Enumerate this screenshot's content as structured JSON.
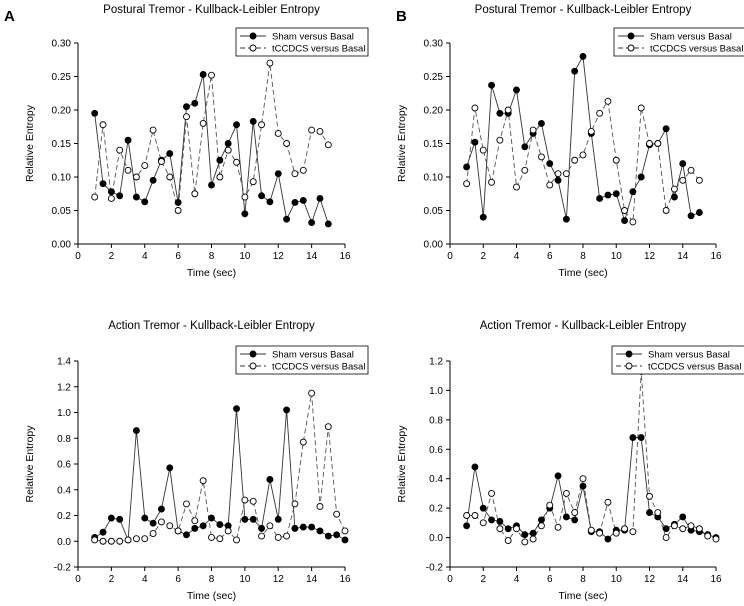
{
  "panels": [
    {
      "label": "A"
    },
    {
      "label": "B"
    }
  ],
  "chart_data": [
    {
      "type": "line",
      "panel": "A",
      "title": "Postural Tremor - Kullback-Leibler Entropy",
      "xlabel": "Time (sec)",
      "ylabel": "Relative Entropy",
      "xlim": [
        0,
        16
      ],
      "ylim": [
        0,
        0.3
      ],
      "xticks": [
        0,
        2,
        4,
        6,
        8,
        10,
        12,
        14,
        16
      ],
      "yticks": [
        0.0,
        0.05,
        0.1,
        0.15,
        0.2,
        0.25,
        0.3
      ],
      "ytick_labels": [
        "0.00",
        "0.05",
        "0.10",
        "0.15",
        "0.20",
        "0.25",
        "0.30"
      ],
      "legend": "top-right",
      "series": [
        {
          "name": "Sham versus Basal",
          "style": "solid-filled",
          "x": [
            1.0,
            1.5,
            2.0,
            2.5,
            3.0,
            3.5,
            4.0,
            4.5,
            5.0,
            5.5,
            6.0,
            6.5,
            7.0,
            7.5,
            8.0,
            8.5,
            9.0,
            9.5,
            10.0,
            10.5,
            11.0,
            11.5,
            12.0,
            12.5,
            13.0,
            13.5,
            14.0,
            14.5,
            15.0
          ],
          "y": [
            0.195,
            0.09,
            0.078,
            0.072,
            0.155,
            0.07,
            0.063,
            0.095,
            0.125,
            0.135,
            0.062,
            0.205,
            0.21,
            0.253,
            0.088,
            0.125,
            0.15,
            0.178,
            0.045,
            0.183,
            0.072,
            0.063,
            0.105,
            0.037,
            0.062,
            0.065,
            0.032,
            0.068,
            0.03
          ]
        },
        {
          "name": "tCCDCS versus Basal",
          "style": "dashed-open",
          "x": [
            1.0,
            1.5,
            2.0,
            2.5,
            3.0,
            3.5,
            4.0,
            4.5,
            5.0,
            5.5,
            6.0,
            6.5,
            7.0,
            7.5,
            8.0,
            8.5,
            9.0,
            9.5,
            10.0,
            10.5,
            11.0,
            11.5,
            12.0,
            12.5,
            13.0,
            13.5,
            14.0,
            14.5,
            15.0
          ],
          "y": [
            0.07,
            0.178,
            0.068,
            0.14,
            0.11,
            0.1,
            0.117,
            0.17,
            0.123,
            0.1,
            0.05,
            0.19,
            0.075,
            0.18,
            0.252,
            0.1,
            0.14,
            0.122,
            0.07,
            0.093,
            0.178,
            0.27,
            0.165,
            0.15,
            0.105,
            0.11,
            0.17,
            0.168,
            0.148
          ]
        }
      ]
    },
    {
      "type": "line",
      "panel": "B",
      "title": "Postural Tremor - Kullback-Leibler Entropy",
      "xlabel": "Time (sec)",
      "ylabel": "Relative Entropy",
      "xlim": [
        0,
        16
      ],
      "ylim": [
        0,
        0.3
      ],
      "xticks": [
        0,
        2,
        4,
        6,
        8,
        10,
        12,
        14,
        16
      ],
      "yticks": [
        0.0,
        0.05,
        0.1,
        0.15,
        0.2,
        0.25,
        0.3
      ],
      "ytick_labels": [
        "0.00",
        "0.05",
        "0.10",
        "0.15",
        "0.20",
        "0.25",
        "0.30"
      ],
      "legend": "top-right",
      "series": [
        {
          "name": "Sham versus Basal",
          "style": "solid-filled",
          "x": [
            1.0,
            1.5,
            2.0,
            2.5,
            3.0,
            3.5,
            4.0,
            4.5,
            5.0,
            5.5,
            6.0,
            6.5,
            7.0,
            7.5,
            8.0,
            8.5,
            9.0,
            9.5,
            10.0,
            10.5,
            11.0,
            11.5,
            12.0,
            12.5,
            13.0,
            13.5,
            14.0,
            14.5,
            15.0
          ],
          "y": [
            0.115,
            0.152,
            0.04,
            0.237,
            0.195,
            0.195,
            0.23,
            0.145,
            0.165,
            0.18,
            0.12,
            0.095,
            0.037,
            0.258,
            0.28,
            0.165,
            0.068,
            0.073,
            0.075,
            0.035,
            0.078,
            0.1,
            0.148,
            0.15,
            0.172,
            0.07,
            0.12,
            0.042,
            0.047
          ]
        },
        {
          "name": "tCCDCS versus Basal",
          "style": "dashed-open",
          "x": [
            1.0,
            1.5,
            2.0,
            2.5,
            3.0,
            3.5,
            4.0,
            4.5,
            5.0,
            5.5,
            6.0,
            6.5,
            7.0,
            7.5,
            8.0,
            8.5,
            9.0,
            9.5,
            10.0,
            10.5,
            11.0,
            11.5,
            12.0,
            12.5,
            13.0,
            13.5,
            14.0,
            14.5,
            15.0
          ],
          "y": [
            0.09,
            0.203,
            0.14,
            0.092,
            0.155,
            0.2,
            0.085,
            0.11,
            0.17,
            0.13,
            0.088,
            0.105,
            0.105,
            0.125,
            0.133,
            0.168,
            0.195,
            0.213,
            0.125,
            0.05,
            0.033,
            0.203,
            0.15,
            0.15,
            0.05,
            0.082,
            0.095,
            0.11,
            0.095
          ]
        }
      ]
    },
    {
      "type": "line",
      "panel": "A",
      "title": "Action Tremor - Kullback-Leibler Entropy",
      "xlabel": "Time (sec)",
      "ylabel": "Relative Entropy",
      "xlim": [
        0,
        16
      ],
      "ylim": [
        -0.2,
        1.4
      ],
      "xticks": [
        0,
        2,
        4,
        6,
        8,
        10,
        12,
        14,
        16
      ],
      "yticks": [
        -0.2,
        0.0,
        0.2,
        0.4,
        0.6,
        0.8,
        1.0,
        1.2,
        1.4
      ],
      "ytick_labels": [
        "-0.2",
        "0.0",
        "0.2",
        "0.4",
        "0.6",
        "0.8",
        "1.0",
        "1.2",
        "1.4"
      ],
      "legend": "top-right",
      "series": [
        {
          "name": "Sham versus Basal",
          "style": "solid-filled",
          "x": [
            1.0,
            1.5,
            2.0,
            2.5,
            3.0,
            3.5,
            4.0,
            4.5,
            5.0,
            5.5,
            6.0,
            6.5,
            7.0,
            7.5,
            8.0,
            8.5,
            9.0,
            9.5,
            10.0,
            10.5,
            11.0,
            11.5,
            12.0,
            12.5,
            13.0,
            13.5,
            14.0,
            14.5,
            15.0,
            15.5,
            16.0
          ],
          "y": [
            0.03,
            0.07,
            0.18,
            0.17,
            0.01,
            0.86,
            0.18,
            0.14,
            0.25,
            0.57,
            0.08,
            0.05,
            0.1,
            0.12,
            0.18,
            0.13,
            0.12,
            1.03,
            0.17,
            0.17,
            0.1,
            0.48,
            0.17,
            1.02,
            0.1,
            0.11,
            0.11,
            0.08,
            0.04,
            0.05,
            0.01
          ]
        },
        {
          "name": "tCCDCS versus Basal",
          "style": "dashed-open",
          "x": [
            1.0,
            1.5,
            2.0,
            2.5,
            3.0,
            3.5,
            4.0,
            4.5,
            5.0,
            5.5,
            6.0,
            6.5,
            7.0,
            7.5,
            8.0,
            8.5,
            9.0,
            9.5,
            10.0,
            10.5,
            11.0,
            11.5,
            12.0,
            12.5,
            13.0,
            13.5,
            14.0,
            14.5,
            15.0,
            15.5,
            16.0
          ],
          "y": [
            0.01,
            0.0,
            0.0,
            0.0,
            0.01,
            0.02,
            0.02,
            0.06,
            0.15,
            0.12,
            0.08,
            0.29,
            0.16,
            0.47,
            0.03,
            0.02,
            0.08,
            0.01,
            0.32,
            0.31,
            0.04,
            0.12,
            0.03,
            0.04,
            0.29,
            0.77,
            1.15,
            0.27,
            0.89,
            0.21,
            0.08
          ]
        }
      ]
    },
    {
      "type": "line",
      "panel": "B",
      "title": "Action Tremor - Kullback-Leibler Entropy",
      "xlabel": "Time (sec)",
      "ylabel": "Relative Entropy",
      "xlim": [
        0,
        16
      ],
      "ylim": [
        -0.2,
        1.2
      ],
      "xticks": [
        0,
        2,
        4,
        6,
        8,
        10,
        12,
        14,
        16
      ],
      "yticks": [
        -0.2,
        0.0,
        0.2,
        0.4,
        0.6,
        0.8,
        1.0,
        1.2
      ],
      "ytick_labels": [
        "-0.2",
        "0.0",
        "0.2",
        "0.4",
        "0.6",
        "0.8",
        "1.0",
        "1.2"
      ],
      "legend": "top-right",
      "series": [
        {
          "name": "Sham versus Basal",
          "style": "solid-filled",
          "x": [
            1.0,
            1.5,
            2.0,
            2.5,
            3.0,
            3.5,
            4.0,
            4.5,
            5.0,
            5.5,
            6.0,
            6.5,
            7.0,
            7.5,
            8.0,
            8.5,
            9.0,
            9.5,
            10.0,
            10.5,
            11.0,
            11.5,
            12.0,
            12.5,
            13.0,
            13.5,
            14.0,
            14.5,
            15.0,
            15.5,
            16.0
          ],
          "y": [
            0.08,
            0.48,
            0.2,
            0.12,
            0.11,
            0.06,
            0.08,
            0.02,
            0.03,
            0.12,
            0.2,
            0.42,
            0.14,
            0.12,
            0.35,
            0.04,
            0.04,
            -0.01,
            0.05,
            0.05,
            0.68,
            0.68,
            0.17,
            0.14,
            0.06,
            0.09,
            0.14,
            0.05,
            0.04,
            0.02,
            0.0
          ]
        },
        {
          "name": "tCCDCS versus Basal",
          "style": "dashed-open",
          "x": [
            1.0,
            1.5,
            2.0,
            2.5,
            3.0,
            3.5,
            4.0,
            4.5,
            5.0,
            5.5,
            6.0,
            6.5,
            7.0,
            7.5,
            8.0,
            8.5,
            9.0,
            9.5,
            10.0,
            10.5,
            11.0,
            11.5,
            12.0,
            12.5,
            13.0,
            13.5,
            14.0,
            14.5,
            15.0,
            15.5,
            16.0
          ],
          "y": [
            0.15,
            0.15,
            0.1,
            0.3,
            0.06,
            -0.02,
            0.06,
            -0.03,
            -0.01,
            0.08,
            0.22,
            0.07,
            0.3,
            0.17,
            0.4,
            0.05,
            0.03,
            0.24,
            0.03,
            0.06,
            0.04,
            1.13,
            0.28,
            0.17,
            0.0,
            0.08,
            0.06,
            0.08,
            0.06,
            0.01,
            -0.01
          ]
        }
      ]
    }
  ]
}
